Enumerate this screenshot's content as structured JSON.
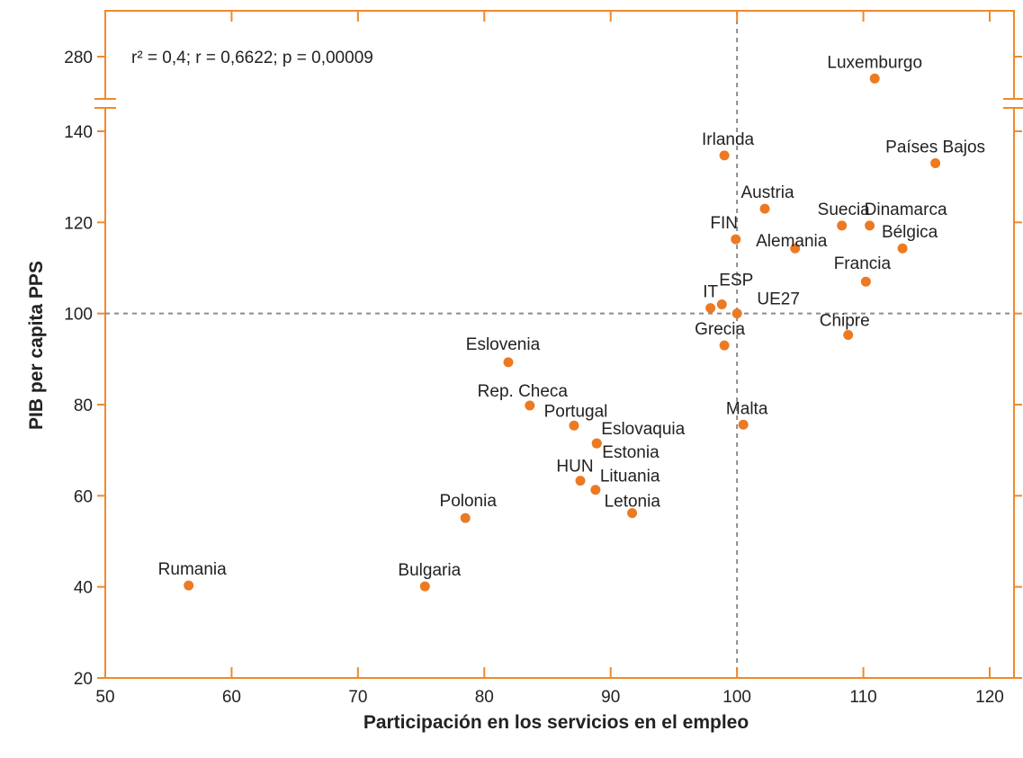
{
  "colors": {
    "frame": "#f0892a",
    "point": "#ec7a22",
    "reference_line": "#8c8c8c",
    "text": "#222222"
  },
  "chart_data": {
    "type": "scatter",
    "title": "",
    "stats_text": "r² = 0,4;   r = 0,6622;   p = 0,00009",
    "stats": {
      "r2": 0.4,
      "r": 0.6622,
      "p": 9e-05
    },
    "xlabel": "Participación en los servicios en el empleo",
    "ylabel": "PIB per capita PPS",
    "xlim": [
      50,
      123
    ],
    "ylim": [
      20,
      147
    ],
    "x_ticks": [
      50,
      60,
      70,
      80,
      90,
      100,
      110,
      120
    ],
    "y_ticks": [
      20,
      40,
      60,
      80,
      100,
      120,
      140
    ],
    "y_axis_break": {
      "broken_above": 147,
      "resumes_at": 280,
      "label": "280"
    },
    "reference_lines": {
      "x": 100,
      "y": 100
    },
    "grid": false,
    "legend": "none",
    "points": [
      {
        "label": "Luxemburgo",
        "x": 110.9,
        "y": 271
      },
      {
        "label": "Irlanda",
        "x": 99.0,
        "y": 134.7
      },
      {
        "label": "Países Bajos",
        "x": 115.7,
        "y": 133.0
      },
      {
        "label": "Austria",
        "x": 102.2,
        "y": 123.0
      },
      {
        "label": "Suecia",
        "x": 108.3,
        "y": 119.3
      },
      {
        "label": "Dinamarca",
        "x": 110.5,
        "y": 119.3
      },
      {
        "label": "FIN",
        "x": 99.9,
        "y": 116.3
      },
      {
        "label": "Alemania",
        "x": 104.6,
        "y": 114.3
      },
      {
        "label": "Bélgica",
        "x": 113.1,
        "y": 114.3
      },
      {
        "label": "Francia",
        "x": 110.2,
        "y": 107.0
      },
      {
        "label": "IT",
        "x": 97.9,
        "y": 101.2
      },
      {
        "label": "ESP",
        "x": 98.8,
        "y": 102.0
      },
      {
        "label": "UE27",
        "x": 100.0,
        "y": 100.0
      },
      {
        "label": "Chipre",
        "x": 108.8,
        "y": 95.3
      },
      {
        "label": "Grecia",
        "x": 99.0,
        "y": 93.0
      },
      {
        "label": "Eslovenia",
        "x": 81.9,
        "y": 89.3
      },
      {
        "label": "Rep. Checa",
        "x": 83.6,
        "y": 79.8
      },
      {
        "label": "Portugal",
        "x": 87.1,
        "y": 75.4
      },
      {
        "label": "Malta",
        "x": 100.5,
        "y": 75.6
      },
      {
        "label": "Eslovaquia",
        "x": 88.9,
        "y": 71.5
      },
      {
        "label": "Estonia",
        "x": 88.9,
        "y": 71.5
      },
      {
        "label": "HUN",
        "x": 87.6,
        "y": 63.3
      },
      {
        "label": "Lituania",
        "x": 88.8,
        "y": 61.3
      },
      {
        "label": "Letonia",
        "x": 91.7,
        "y": 56.2
      },
      {
        "label": "Polonia",
        "x": 78.5,
        "y": 55.1
      },
      {
        "label": "Rumania",
        "x": 56.6,
        "y": 40.3
      },
      {
        "label": "Bulgaria",
        "x": 75.3,
        "y": 40.1
      }
    ]
  }
}
